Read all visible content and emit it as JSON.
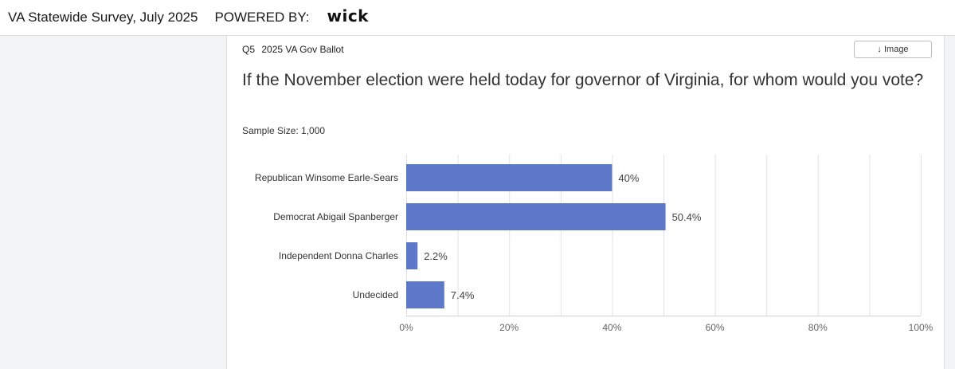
{
  "header": {
    "title": "VA Statewide Survey, July 2025",
    "powered_by": "POWERED BY:",
    "logo_text": "wick"
  },
  "card": {
    "question_number": "Q5",
    "question_short": "2025 VA Gov Ballot",
    "image_button": "↓ Image",
    "question_text": "If the November election were held today for governor of Virginia, for whom would you vote?",
    "sample_size": "Sample Size: 1,000"
  },
  "colors": {
    "bar": "#5e78c9",
    "grid": "#e2e2e2",
    "axis_text": "#666666"
  },
  "chart_data": {
    "type": "bar",
    "orientation": "horizontal",
    "categories": [
      "Republican Winsome Earle-Sears",
      "Democrat Abigail Spanberger",
      "Independent Donna Charles",
      "Undecided"
    ],
    "values": [
      40,
      50.4,
      2.2,
      7.4
    ],
    "value_labels": [
      "40%",
      "50.4%",
      "2.2%",
      "7.4%"
    ],
    "xlim": [
      0,
      100
    ],
    "x_ticks": [
      0,
      20,
      40,
      60,
      80,
      100
    ],
    "x_tick_labels": [
      "0%",
      "20%",
      "40%",
      "60%",
      "80%",
      "100%"
    ],
    "grid": true
  }
}
